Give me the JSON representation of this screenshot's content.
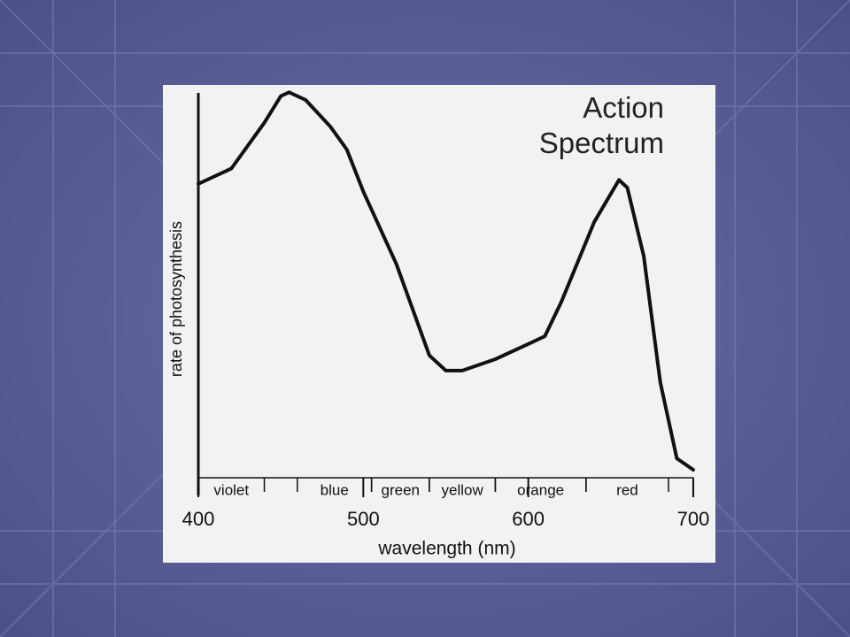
{
  "chart_data": {
    "type": "line",
    "title": "Action Spectrum",
    "x_label": "wavelength (nm)",
    "y_label": "rate of photosynthesis",
    "x": [
      400,
      420,
      440,
      450,
      455,
      465,
      480,
      490,
      500,
      520,
      540,
      550,
      560,
      580,
      600,
      610,
      620,
      640,
      655,
      660,
      670,
      680,
      690,
      700
    ],
    "values": [
      75,
      79,
      91,
      98,
      99,
      97,
      90,
      84,
      73,
      54,
      30,
      26,
      26,
      29,
      33,
      35,
      44,
      65,
      76,
      74,
      56,
      23,
      3,
      0
    ],
    "color": "#111111",
    "xlim": [
      400,
      700
    ],
    "xticks": [
      400,
      500,
      600,
      700
    ],
    "ylim": [
      0,
      100
    ],
    "bands": [
      {
        "label": "violet",
        "from": 400,
        "to": 440
      },
      {
        "label": "blue",
        "from": 460,
        "to": 505
      },
      {
        "label": "green",
        "from": 505,
        "to": 540
      },
      {
        "label": "yellow",
        "from": 540,
        "to": 580
      },
      {
        "label": "orange",
        "from": 580,
        "to": 635
      },
      {
        "label": "red",
        "from": 635,
        "to": 685
      }
    ]
  }
}
